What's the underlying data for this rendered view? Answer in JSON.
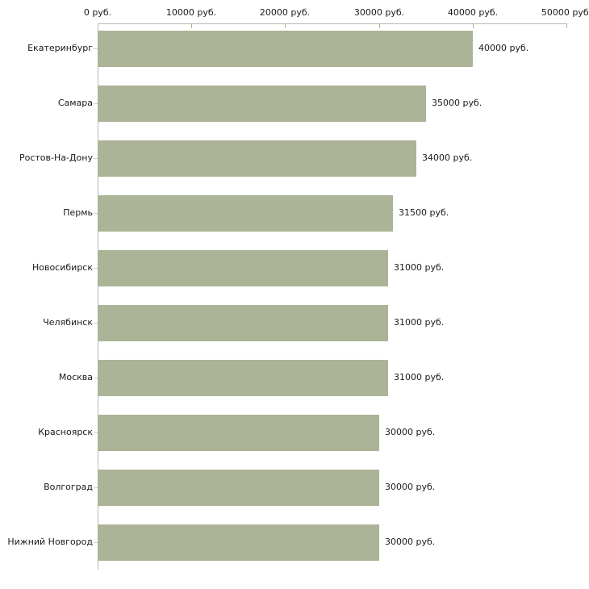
{
  "chart_data": {
    "type": "bar",
    "orientation": "horizontal",
    "title": "",
    "xlabel": "",
    "ylabel": "",
    "unit": "руб.",
    "categories": [
      "Екатеринбург",
      "Самара",
      "Ростов-На-Дону",
      "Пермь",
      "Новосибирск",
      "Челябинск",
      "Москва",
      "Красноярск",
      "Волгоград",
      "Нижний Новгород"
    ],
    "values": [
      40000,
      35000,
      34000,
      31500,
      31000,
      31000,
      31000,
      30000,
      30000,
      30000
    ],
    "value_labels": [
      "40000 руб.",
      "35000 руб.",
      "34000 руб.",
      "31500 руб.",
      "31000 руб.",
      "31000 руб.",
      "31000 руб.",
      "30000 руб.",
      "30000 руб.",
      "30000 руб."
    ],
    "x_ticks": [
      0,
      10000,
      20000,
      30000,
      40000,
      50000
    ],
    "x_tick_labels": [
      "0 руб.",
      "10000 руб.",
      "20000 руб.",
      "30000 руб.",
      "40000 руб.",
      "50000 руб."
    ],
    "xlim": [
      0,
      50000
    ],
    "grid": false,
    "legend": null,
    "colors": {
      "bar": "#abb496",
      "axis_line": "#b8b8b8",
      "x_tick": "#b3b380",
      "category_tick": "#d4d4b8",
      "text": "#1a1a1a",
      "background": "#ffffff"
    }
  }
}
